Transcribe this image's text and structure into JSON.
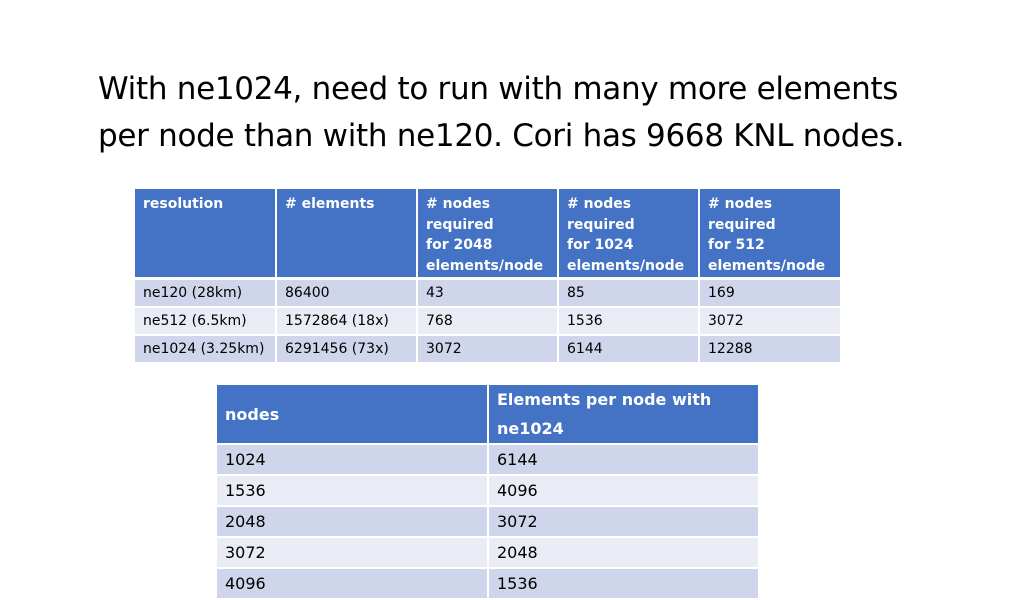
{
  "title": "With ne1024, need to run with many more elements per node than with ne120. Cori has 9668 KNL nodes.",
  "colors": {
    "header_blue": "#4472c4",
    "row_dark": "#cfd5ea",
    "row_light": "#e9ebf5"
  },
  "resolution_table": {
    "headers": [
      "resolution",
      "# elements",
      "# nodes required\nfor 2048\nelements/node",
      "# nodes required\nfor 1024\nelements/node",
      "# nodes required\nfor 512\nelements/node"
    ],
    "rows": [
      [
        "ne120 (28km)",
        "86400",
        "43",
        "85",
        "169"
      ],
      [
        "ne512 (6.5km)",
        "1572864 (18x)",
        "768",
        "1536",
        "3072"
      ],
      [
        "ne1024 (3.25km)",
        "6291456 (73x)",
        "3072",
        "6144",
        "12288"
      ]
    ]
  },
  "nodes_table": {
    "headers": [
      "nodes",
      "Elements per node with ne1024"
    ],
    "rows": [
      [
        "1024",
        "6144"
      ],
      [
        "1536",
        "4096"
      ],
      [
        "2048",
        "3072"
      ],
      [
        "3072",
        "2048"
      ],
      [
        "4096",
        "1536"
      ]
    ]
  }
}
